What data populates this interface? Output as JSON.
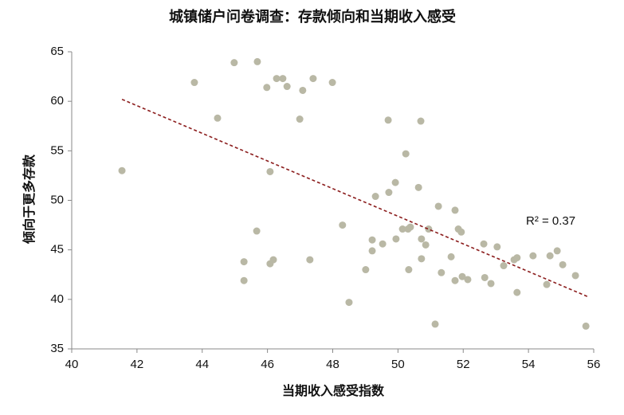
{
  "chart_data": {
    "type": "scatter",
    "title": "城镇储户问卷调查：存款倾向和当期收入感受",
    "x_label": "当期收入感受指数",
    "y_label": "倾向于更多存款",
    "color": "#b9b8a5",
    "x": [
      41.54,
      43.76,
      44.47,
      44.98,
      45.69,
      45.67,
      45.28,
      45.28,
      45.98,
      46.08,
      46.08,
      46.18,
      46.28,
      46.47,
      46.6,
      46.99,
      47.08,
      47.3,
      47.4,
      47.99,
      48.3,
      48.5,
      49.01,
      49.21,
      49.21,
      49.31,
      49.53,
      49.7,
      49.72,
      49.92,
      49.94,
      50.14,
      50.24,
      50.31,
      50.33,
      50.38,
      50.63,
      50.7,
      50.72,
      50.72,
      50.85,
      50.94,
      51.14,
      51.24,
      51.33,
      51.63,
      51.75,
      51.75,
      51.85,
      51.94,
      51.97,
      52.14,
      52.63,
      52.66,
      52.85,
      53.04,
      53.24,
      53.56,
      53.65,
      53.65,
      54.14,
      54.56,
      54.66,
      54.88,
      55.05,
      55.44,
      55.76
    ],
    "y": [
      53.0,
      61.9,
      58.3,
      63.9,
      64.0,
      46.9,
      43.8,
      41.9,
      61.4,
      52.9,
      43.6,
      44.0,
      62.3,
      62.3,
      61.5,
      58.2,
      61.1,
      44.0,
      62.3,
      61.9,
      47.5,
      39.7,
      43.0,
      44.9,
      46.0,
      50.4,
      45.6,
      58.1,
      50.8,
      51.8,
      46.1,
      47.1,
      54.7,
      47.1,
      43.0,
      47.3,
      51.3,
      58.0,
      46.1,
      44.1,
      45.5,
      47.1,
      37.5,
      49.4,
      42.7,
      44.3,
      49.0,
      41.9,
      47.1,
      46.8,
      42.3,
      42.0,
      45.6,
      42.2,
      41.6,
      45.3,
      43.4,
      44.0,
      44.2,
      40.7,
      44.4,
      41.5,
      44.4,
      44.9,
      43.5,
      42.4,
      37.3
    ],
    "trendline": {
      "x": [
        41.54,
        55.8
      ],
      "y": [
        60.2,
        40.3
      ],
      "color": "#8b1c1c",
      "label": "R² = 0.37"
    },
    "xlim": [
      40,
      56
    ],
    "xticks": [
      40,
      42,
      44,
      46,
      48,
      50,
      52,
      54,
      56
    ],
    "ylim": [
      35,
      65
    ],
    "yticks": [
      35,
      40,
      45,
      50,
      55,
      60,
      65
    ],
    "grid": false
  }
}
